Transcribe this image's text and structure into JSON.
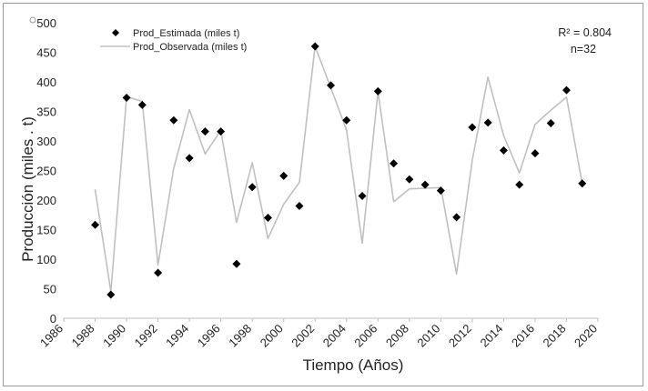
{
  "chart_data": {
    "type": "scatter",
    "title": "",
    "xlabel": "Tiempo (Años)",
    "ylabel": "Producción (miles . t)",
    "xlim": [
      1986,
      2020
    ],
    "ylim": [
      0,
      500
    ],
    "x_ticks": [
      "1986",
      "1988",
      "1990",
      "1992",
      "1994",
      "1996",
      "1998",
      "2000",
      "2002",
      "2004",
      "2006",
      "2008",
      "2010",
      "2012",
      "2014",
      "2016",
      "2018",
      "2020"
    ],
    "y_ticks": [
      "0",
      "50",
      "100",
      "150",
      "200",
      "250",
      "300",
      "350",
      "400",
      "450",
      "500"
    ],
    "grid": false,
    "legend_position": "top-left",
    "series": [
      {
        "name": "Prod_Estimada (miles t)",
        "kind": "markers",
        "marker": "diamond",
        "color": "#000000",
        "x": [
          1988,
          1989,
          1990,
          1991,
          1992,
          1993,
          1994,
          1995,
          1996,
          1997,
          1998,
          1999,
          2000,
          2001,
          2002,
          2003,
          2004,
          2005,
          2006,
          2007,
          2008,
          2009,
          2010,
          2011,
          2012,
          2013,
          2014,
          2015,
          2016,
          2017,
          2018,
          2019
        ],
        "y": [
          158,
          40,
          373,
          361,
          77,
          335,
          271,
          316,
          316,
          92,
          222,
          170,
          241,
          190,
          460,
          394,
          335,
          207,
          384,
          262,
          235,
          226,
          216,
          171,
          323,
          331,
          284,
          226,
          279,
          330,
          386,
          228
        ]
      },
      {
        "name": "Prod_Observada (miles t)",
        "kind": "line",
        "color": "#c0c0c0",
        "x": [
          1988,
          1989,
          1990,
          1991,
          1992,
          1993,
          1994,
          1995,
          1996,
          1997,
          1998,
          1999,
          2000,
          2001,
          2002,
          2003,
          2004,
          2005,
          2006,
          2007,
          2008,
          2009,
          2010,
          2011,
          2012,
          2013,
          2014,
          2015,
          2016,
          2017,
          2018,
          2019
        ],
        "y": [
          218,
          45,
          375,
          367,
          90,
          254,
          353,
          278,
          318,
          162,
          263,
          135,
          193,
          230,
          460,
          390,
          318,
          127,
          383,
          197,
          219,
          220,
          221,
          75,
          267,
          408,
          309,
          246,
          328,
          352,
          374,
          228
        ]
      }
    ],
    "annotations": {
      "r2_label": "R² = 0.804",
      "n_label": "n=32"
    }
  }
}
